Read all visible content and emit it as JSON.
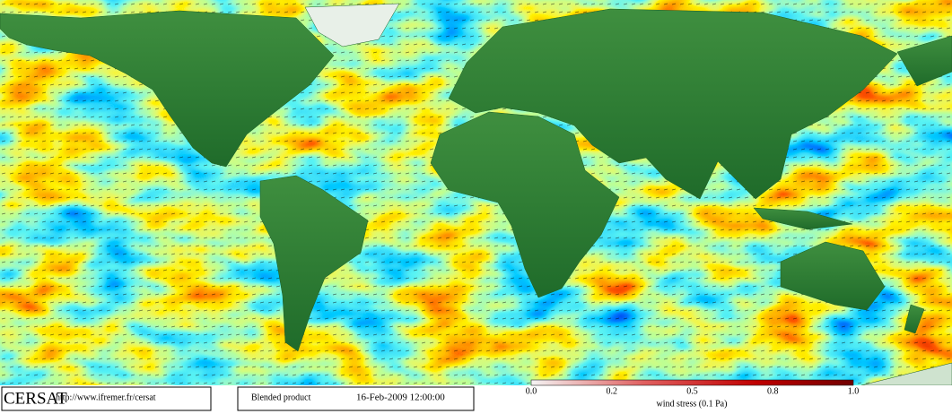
{
  "map": {
    "logo": "CERSAT",
    "url": "http://www.ifremer.fr/cersat",
    "product": "Blended product",
    "date": "16-Feb-2009 12:00:00",
    "colorbar": {
      "label": "wind stress (0.1 Pa)",
      "ticks": [
        "0.0",
        "0.2",
        "0.5",
        "0.8",
        "1.0"
      ]
    }
  }
}
